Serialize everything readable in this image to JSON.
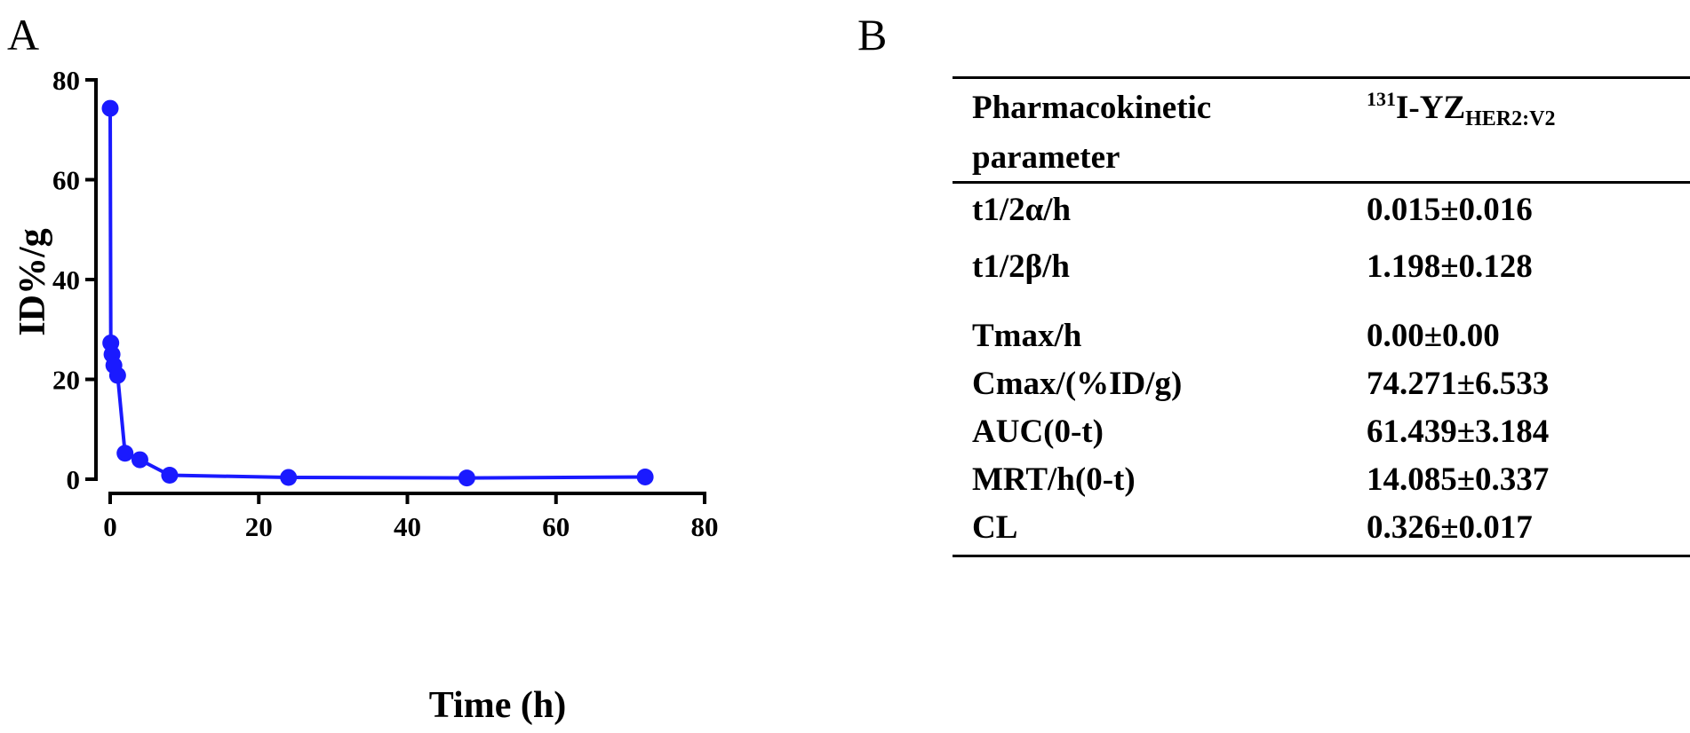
{
  "panels": {
    "a_label": "A",
    "b_label": "B"
  },
  "chart_data": {
    "type": "line",
    "xlabel": "Time (h)",
    "ylabel": "ID%/g",
    "xlim": [
      0,
      80
    ],
    "ylim": [
      0,
      80
    ],
    "xticks": [
      "0",
      "20",
      "40",
      "60",
      "80"
    ],
    "yticks": [
      "0",
      "20",
      "40",
      "60",
      "80"
    ],
    "grid": false,
    "series": [
      {
        "color": "#1a1aff",
        "x": [
          0,
          0.083,
          0.25,
          0.5,
          1,
          2,
          4,
          8,
          24,
          48,
          72
        ],
        "y": [
          74.3,
          27.3,
          25.0,
          22.8,
          20.8,
          5.2,
          3.9,
          0.8,
          0.35,
          0.25,
          0.45
        ]
      }
    ]
  },
  "table": {
    "header": {
      "param": "Pharmacokinetic",
      "param_line2": "parameter",
      "agent_sup": "131",
      "agent_main": "I-YZ",
      "agent_sub": "HER2:V2"
    },
    "rows": [
      {
        "param": "t1/2α/h",
        "value": "0.015±0.016"
      },
      {
        "param": "t1/2β/h",
        "value": "1.198±0.128"
      },
      {
        "param": "Tmax/h",
        "value": "0.00±0.00"
      },
      {
        "param": "Cmax/(%ID/g)",
        "value": "74.271±6.533"
      },
      {
        "param": "AUC(0-t)",
        "value": "61.439±3.184"
      },
      {
        "param": "MRT/h(0-t)",
        "value": "14.085±0.337"
      },
      {
        "param": "CL",
        "value": "0.326±0.017"
      }
    ]
  }
}
